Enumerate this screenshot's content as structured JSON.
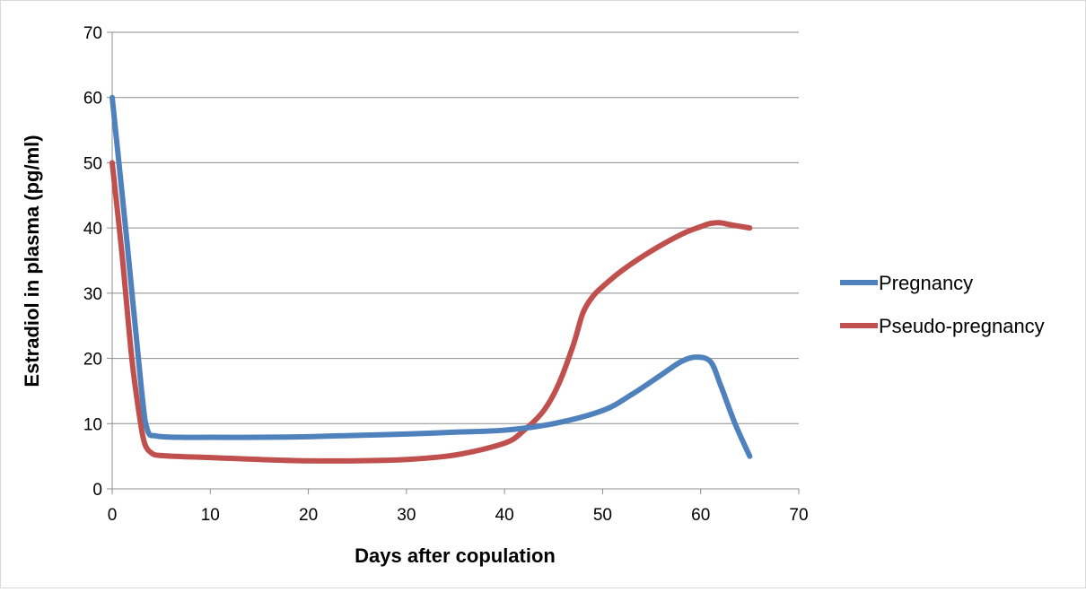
{
  "chart_data": {
    "type": "line",
    "title": "",
    "xlabel": "Days after copulation",
    "ylabel": "Estradiol in plasma (pg/ml)",
    "xlim": [
      0,
      70
    ],
    "ylim": [
      0,
      70
    ],
    "xticks": [
      "0",
      "10",
      "20",
      "30",
      "40",
      "50",
      "60",
      "70"
    ],
    "yticks": [
      "0",
      "10",
      "20",
      "30",
      "40",
      "50",
      "60",
      "70"
    ],
    "grid": "horizontal",
    "legend_position": "right",
    "series": [
      {
        "name": "Pregnancy",
        "color": "#4f81bd",
        "x": [
          0,
          1.5,
          3,
          3.6,
          4.5,
          7,
          10,
          15,
          20,
          25,
          30,
          35,
          40,
          45,
          50,
          53,
          56,
          58,
          59.5,
          61,
          62,
          63.5,
          65
        ],
        "y": [
          60,
          38,
          15,
          9,
          8.1,
          7.9,
          7.9,
          7.9,
          8.0,
          8.2,
          8.4,
          8.7,
          9.0,
          10,
          12,
          14.5,
          17.5,
          19.5,
          20.2,
          19.5,
          16,
          10,
          5
        ]
      },
      {
        "name": "Pseudo-pregnancy",
        "color": "#c0504d",
        "x": [
          0,
          1,
          2,
          2.8,
          3.3,
          4,
          5,
          8,
          10,
          15,
          20,
          25,
          30,
          35,
          40,
          42,
          44,
          45.5,
          47,
          48,
          49,
          50,
          52,
          55,
          58,
          60,
          61,
          62,
          63,
          65
        ],
        "y": [
          50,
          36,
          20,
          11,
          7,
          5.5,
          5.1,
          4.9,
          4.8,
          4.5,
          4.3,
          4.3,
          4.5,
          5.2,
          7,
          9,
          12,
          16,
          22,
          27,
          29.5,
          31,
          33.5,
          36.5,
          39,
          40.2,
          40.7,
          40.8,
          40.5,
          40
        ]
      }
    ]
  }
}
